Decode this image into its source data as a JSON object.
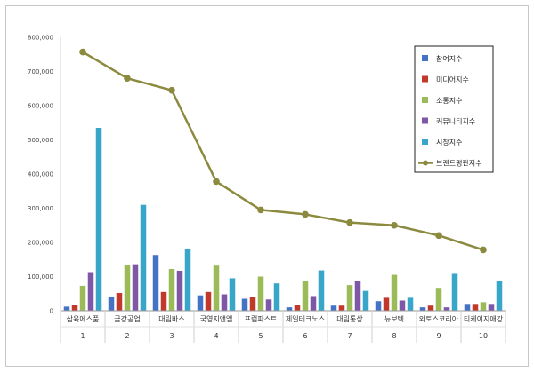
{
  "chart_data": {
    "type": "bar",
    "title": "",
    "xlabel": "",
    "ylabel": "",
    "ylim": [
      0,
      800000
    ],
    "y_ticks": [
      "0",
      "100,000",
      "200,000",
      "300,000",
      "400,000",
      "500,000",
      "600,000",
      "700,000",
      "800,000"
    ],
    "grid": false,
    "legend_position": "top-right",
    "categories": [
      "삼육에스품",
      "금강공업",
      "대림바스",
      "국영지앤엠",
      "프럼파스트",
      "제일테크노스",
      "대림통상",
      "뉴보텍",
      "와토스코리아",
      "티케이지애강"
    ],
    "ranks": [
      "1",
      "2",
      "3",
      "4",
      "5",
      "6",
      "7",
      "8",
      "9",
      "10"
    ],
    "series": [
      {
        "name": "참여지수",
        "type": "bar",
        "color": "#4472c4",
        "values": [
          12000,
          40000,
          163000,
          45000,
          35000,
          10000,
          15000,
          28000,
          10000,
          20000
        ]
      },
      {
        "name": "미디어지수",
        "type": "bar",
        "color": "#c0392b",
        "values": [
          18000,
          52000,
          55000,
          55000,
          40000,
          18000,
          15000,
          38000,
          15000,
          20000
        ]
      },
      {
        "name": "소통지수",
        "type": "bar",
        "color": "#9bbb59",
        "values": [
          73000,
          133000,
          122000,
          132000,
          100000,
          87000,
          75000,
          105000,
          67000,
          25000
        ]
      },
      {
        "name": "커뮤니티지수",
        "type": "bar",
        "color": "#7e57a6",
        "values": [
          113000,
          136000,
          117000,
          48000,
          33000,
          43000,
          88000,
          30000,
          10000,
          20000
        ]
      },
      {
        "name": "시장지수",
        "type": "bar",
        "color": "#38a6c8",
        "values": [
          535000,
          310000,
          182000,
          95000,
          80000,
          118000,
          58000,
          38000,
          108000,
          87000
        ]
      },
      {
        "name": "브랜드평판지수",
        "type": "line",
        "color": "#8b8a3e",
        "values": [
          757000,
          680000,
          645000,
          378000,
          295000,
          282000,
          258000,
          250000,
          220000,
          178000
        ]
      }
    ]
  }
}
